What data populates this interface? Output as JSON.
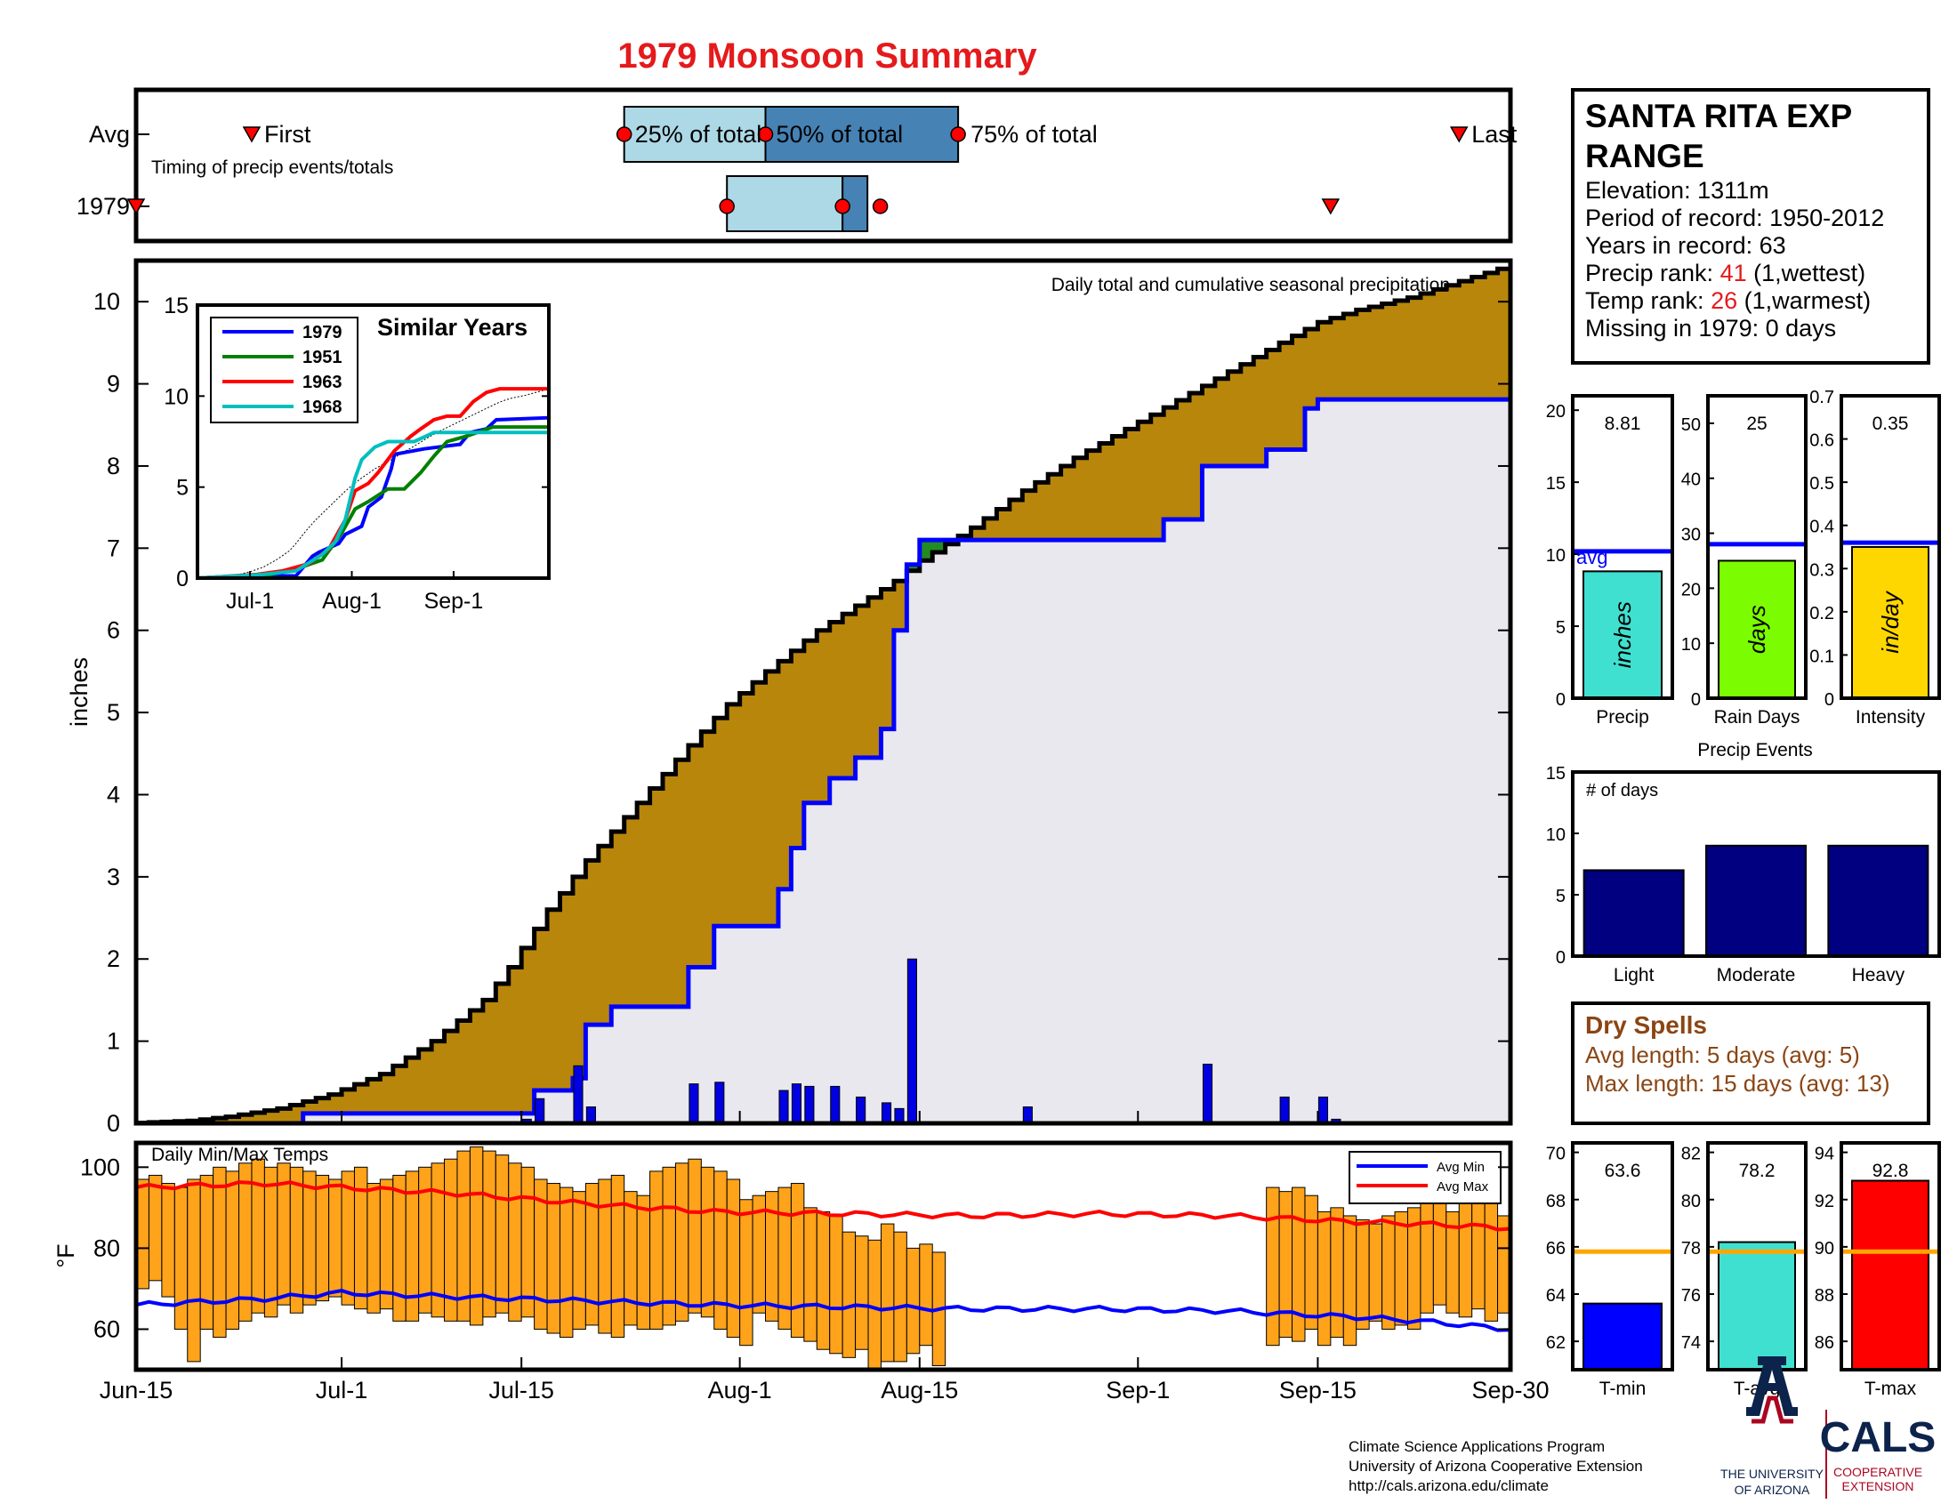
{
  "title": "1979 Monsoon Summary",
  "colors": {
    "title": "#e41a1c",
    "climo_fill": "#b8860b",
    "year_fill": "#e8e8ee",
    "surplus_fill": "#228b22",
    "daily_bar": "#0000e0",
    "climo_line": "#000000",
    "year_line": "#0000ff",
    "temp_bar": "#ffa31a",
    "avg_max": "#ff0000",
    "avg_min": "#0000ff",
    "q_light": "#add8e6",
    "q_dark": "#4682b4",
    "marker": "#ff0000",
    "ref_line": "#ffa500"
  },
  "timing": {
    "avg_label": "Avg",
    "year_label": "1979",
    "caption": "Timing of precip events/totals",
    "first_label": "First",
    "last_label": "Last",
    "q25_label": "25% of total",
    "q50_label": "50% of total",
    "q75_label": "75% of total",
    "avg_dates": {
      "first": "Jun-24",
      "q25": "Jul-23",
      "q50": "Aug-3",
      "q75": "Aug-18",
      "last": "Sep-26"
    },
    "year_dates": {
      "first": "Jun-15",
      "q25": "Jul-31",
      "q50": "Aug-9",
      "q75": "Aug-10",
      "last": "Sep-16"
    }
  },
  "precip_panel": {
    "caption": "Daily total and cumulative seasonal precipitation",
    "ylabel": "inches",
    "ylim": [
      0,
      10.5
    ],
    "yticks": [
      "0",
      "1",
      "2",
      "3",
      "4",
      "5",
      "6",
      "7",
      "8",
      "9",
      "10"
    ]
  },
  "xaxis": {
    "start": "Jun-15",
    "end": "Sep-30",
    "days": 107,
    "ticks": [
      {
        "day": 0,
        "label": "Jun-15"
      },
      {
        "day": 16,
        "label": "Jul-1"
      },
      {
        "day": 30,
        "label": "Jul-15"
      },
      {
        "day": 47,
        "label": "Aug-1"
      },
      {
        "day": 61,
        "label": "Aug-15"
      },
      {
        "day": 78,
        "label": "Sep-1"
      },
      {
        "day": 92,
        "label": "Sep-15"
      },
      {
        "day": 107,
        "label": "Sep-30"
      }
    ]
  },
  "chart_data": [
    {
      "type": "area",
      "name": "cumulative precipitation",
      "x_start": "Jun-15",
      "climo_cumulative": {
        "days": [
          0,
          5,
          8,
          12,
          16,
          20,
          24,
          28,
          30,
          33,
          36,
          40,
          44,
          47,
          50,
          54,
          57,
          60,
          62,
          64,
          66,
          70,
          74,
          78,
          82,
          86,
          90,
          93,
          96,
          100,
          104,
          107
        ],
        "values": [
          0.0,
          0.03,
          0.08,
          0.18,
          0.35,
          0.6,
          1.0,
          1.5,
          1.9,
          2.6,
          3.2,
          3.9,
          4.6,
          5.1,
          5.5,
          6.0,
          6.3,
          6.6,
          6.85,
          7.05,
          7.25,
          7.7,
          8.1,
          8.45,
          8.8,
          9.15,
          9.5,
          9.75,
          9.9,
          10.05,
          10.25,
          10.4
        ]
      },
      "year_cumulative": {
        "days": [
          0,
          13,
          30,
          31,
          34,
          35,
          37,
          43,
          45,
          50,
          51,
          52,
          54,
          56,
          58,
          59,
          60,
          60.5,
          69,
          80,
          83,
          88,
          91,
          92,
          107
        ],
        "values": [
          0.0,
          0.12,
          0.12,
          0.4,
          0.55,
          1.2,
          1.42,
          1.9,
          2.4,
          2.85,
          3.35,
          3.9,
          4.2,
          4.45,
          4.8,
          6.0,
          6.8,
          7.1,
          7.1,
          7.35,
          8.0,
          8.2,
          8.7,
          8.81,
          8.81
        ]
      }
    },
    {
      "type": "bar",
      "name": "daily precipitation",
      "days": [
        30,
        31,
        34,
        35,
        43,
        45,
        50,
        51,
        52,
        54,
        56,
        58,
        59,
        60,
        69,
        83,
        89,
        92,
        93
      ],
      "values": [
        0.05,
        0.3,
        0.7,
        0.2,
        0.48,
        0.5,
        0.4,
        0.48,
        0.45,
        0.45,
        0.32,
        0.25,
        0.18,
        2.0,
        0.2,
        0.72,
        0.32,
        0.32,
        0.05
      ]
    },
    {
      "type": "line",
      "name": "Similar Years",
      "title": "Similar Years",
      "xticks": [
        "Jul-1",
        "Aug-1",
        "Sep-1"
      ],
      "ylim": [
        0,
        15
      ],
      "yticks": [
        "0",
        "5",
        "10",
        "15"
      ],
      "series": [
        {
          "name": "1979",
          "color": "#0000ff",
          "days": [
            0,
            13,
            30,
            35,
            37,
            43,
            45,
            50,
            52,
            56,
            59,
            60,
            69,
            80,
            83,
            88,
            91,
            107
          ],
          "values": [
            0,
            0.12,
            0.12,
            1.2,
            1.42,
            1.9,
            2.4,
            2.85,
            3.9,
            4.45,
            6.0,
            6.8,
            7.1,
            7.35,
            8.0,
            8.2,
            8.7,
            8.81
          ]
        },
        {
          "name": "1951",
          "color": "#008000",
          "days": [
            0,
            20,
            30,
            38,
            44,
            48,
            52,
            58,
            63,
            68,
            72,
            76,
            82,
            90,
            96,
            107
          ],
          "values": [
            0,
            0.1,
            0.5,
            1.0,
            2.5,
            3.8,
            4.2,
            4.9,
            4.9,
            5.8,
            6.7,
            7.5,
            7.8,
            8.3,
            8.3,
            8.3
          ]
        },
        {
          "name": "1963",
          "color": "#ff0000",
          "days": [
            0,
            18,
            26,
            34,
            40,
            45,
            48,
            52,
            55,
            60,
            65,
            68,
            72,
            76,
            80,
            84,
            88,
            92,
            96,
            107
          ],
          "values": [
            0,
            0.2,
            0.4,
            0.8,
            1.6,
            3.2,
            4.8,
            5.2,
            5.8,
            7.0,
            7.8,
            8.2,
            8.7,
            8.9,
            8.9,
            9.7,
            10.2,
            10.4,
            10.4,
            10.4
          ]
        },
        {
          "name": "1968",
          "color": "#00bfbf",
          "days": [
            0,
            20,
            30,
            38,
            42,
            45,
            48,
            50,
            54,
            58,
            62,
            66,
            72,
            80,
            90,
            107
          ],
          "values": [
            0,
            0.2,
            0.4,
            1.3,
            2.0,
            3.2,
            5.5,
            6.5,
            7.2,
            7.5,
            7.5,
            7.5,
            8.0,
            8.0,
            8.0,
            8.0
          ]
        }
      ]
    },
    {
      "type": "bar",
      "name": "Daily Min/Max Temps",
      "title": "Daily Min/Max Temps",
      "ylabel": "°F",
      "ylim": [
        50,
        106
      ],
      "yticks": [
        "60",
        "80",
        "100"
      ],
      "avg_min_name": "Avg Min",
      "avg_max_name": "Avg Max",
      "avg_min": {
        "days": [
          0,
          10,
          16,
          25,
          35,
          45,
          55,
          65,
          75,
          85,
          95,
          100,
          107
        ],
        "values": [
          66,
          67.5,
          69,
          68,
          67,
          66,
          65.5,
          65,
          65,
          64.5,
          63,
          62,
          60
        ]
      },
      "avg_max": {
        "days": [
          0,
          10,
          16,
          25,
          35,
          45,
          55,
          65,
          75,
          85,
          95,
          100,
          107
        ],
        "values": [
          95,
          96,
          95,
          93.5,
          91,
          89,
          88.5,
          88,
          88.5,
          88,
          86.5,
          86,
          85
        ]
      },
      "days": [
        0,
        1,
        2,
        3,
        4,
        5,
        6,
        7,
        8,
        9,
        10,
        11,
        12,
        13,
        14,
        15,
        16,
        17,
        18,
        19,
        20,
        21,
        22,
        23,
        24,
        25,
        26,
        27,
        28,
        29,
        30,
        31,
        32,
        33,
        34,
        35,
        36,
        37,
        38,
        39,
        40,
        41,
        42,
        43,
        44,
        45,
        46,
        47,
        48,
        49,
        50,
        51,
        52,
        53,
        54,
        55,
        56,
        57,
        58,
        59,
        60,
        61,
        62,
        88,
        89,
        90,
        91,
        92,
        93,
        94,
        95,
        96,
        97,
        98,
        99,
        100,
        101,
        102,
        103,
        104,
        105,
        106
      ],
      "tmax": [
        97,
        98,
        96,
        95,
        97,
        98,
        100,
        99,
        101,
        102,
        100,
        101,
        100,
        99,
        98,
        97,
        99,
        100,
        96,
        97,
        98,
        99,
        100,
        101,
        102,
        104,
        105,
        104,
        103,
        101,
        100,
        97,
        96,
        95,
        94,
        96,
        97,
        98,
        94,
        93,
        99,
        100,
        101,
        102,
        100,
        99,
        97,
        92,
        93,
        94,
        95,
        96,
        90,
        89,
        88,
        84,
        83,
        82,
        86,
        84,
        80,
        81,
        79,
        95,
        94,
        95,
        93,
        89,
        90,
        88,
        87,
        86,
        88,
        89,
        90,
        92,
        93,
        89,
        93,
        92,
        94,
        88
      ],
      "tmin": [
        70,
        72,
        68,
        60,
        52,
        60,
        58,
        60,
        62,
        64,
        63,
        66,
        64,
        66,
        67,
        68,
        66,
        65,
        64,
        65,
        62,
        62,
        64,
        63,
        62,
        62,
        61,
        63,
        64,
        62,
        63,
        60,
        59,
        58,
        60,
        61,
        59,
        58,
        61,
        60,
        60,
        61,
        62,
        64,
        63,
        60,
        58,
        56,
        64,
        62,
        60,
        58,
        57,
        55,
        54,
        53,
        55,
        50,
        52,
        52,
        54,
        56,
        51,
        56,
        58,
        57,
        60,
        56,
        58,
        56,
        60,
        62,
        60,
        61,
        60,
        64,
        66,
        64,
        63,
        65,
        62,
        64
      ]
    },
    {
      "type": "bar",
      "name": "Precip",
      "categories": [
        "Precip"
      ],
      "values": [
        8.81
      ],
      "avg": 10.2,
      "avg_label": "avg",
      "bar_label": "inches",
      "value_label": "8.81",
      "ylim": [
        0,
        21
      ],
      "yticks": [
        "0",
        "5",
        "10",
        "15",
        "20"
      ],
      "color": "#40e0d0"
    },
    {
      "type": "bar",
      "name": "Rain Days",
      "categories": [
        "Rain Days"
      ],
      "values": [
        25
      ],
      "avg": 28,
      "bar_label": "days",
      "value_label": "25",
      "ylim": [
        0,
        55
      ],
      "yticks": [
        "0",
        "10",
        "20",
        "30",
        "40",
        "50"
      ],
      "color": "#7cfc00"
    },
    {
      "type": "bar",
      "name": "Intensity",
      "categories": [
        "Intensity"
      ],
      "values": [
        0.35
      ],
      "avg": 0.36,
      "bar_label": "in/day",
      "value_label": "0.35",
      "ylim": [
        0,
        0.7
      ],
      "yticks": [
        "0",
        "0.1",
        "0.2",
        "0.3",
        "0.4",
        "0.5",
        "0.6",
        "0.7"
      ],
      "color": "#ffd700"
    },
    {
      "type": "bar",
      "name": "Precip Events",
      "title": "Precip Events",
      "subtitle": "# of days",
      "categories": [
        "Light",
        "Moderate",
        "Heavy"
      ],
      "values": [
        7,
        9,
        9
      ],
      "ylim": [
        0,
        15
      ],
      "yticks": [
        "0",
        "5",
        "10",
        "15"
      ],
      "color": "#000080"
    },
    {
      "type": "bar",
      "name": "T-min",
      "categories": [
        "T-min"
      ],
      "values": [
        63.6
      ],
      "avg": 65.8,
      "value_label": "63.6",
      "ylim": [
        60.8,
        70.4
      ],
      "yticks": [
        "62",
        "64",
        "66",
        "68",
        "70"
      ],
      "color": "#0000ff"
    },
    {
      "type": "bar",
      "name": "T-avg",
      "categories": [
        "T-avg"
      ],
      "values": [
        78.2
      ],
      "avg": 77.8,
      "value_label": "78.2",
      "ylim": [
        72.8,
        82.4
      ],
      "yticks": [
        "74",
        "76",
        "78",
        "80",
        "82"
      ],
      "color": "#40e0d0"
    },
    {
      "type": "bar",
      "name": "T-max",
      "categories": [
        "T-max"
      ],
      "values": [
        92.8
      ],
      "avg": 89.8,
      "value_label": "92.8",
      "ylim": [
        84.8,
        94.4
      ],
      "yticks": [
        "86",
        "88",
        "90",
        "92",
        "94"
      ],
      "color": "#ff0000"
    }
  ],
  "station": {
    "name_line1": "SANTA RITA EXP",
    "name_line2": "RANGE",
    "elevation_label": "Elevation: 1311m",
    "period_label": "Period of record: 1950-2012",
    "years_label": "Years in record: 63",
    "precip_rank_prefix": "Precip rank: ",
    "precip_rank": "41",
    "precip_rank_suffix": " (1,wettest)",
    "temp_rank_prefix": "Temp rank: ",
    "temp_rank": "26",
    "temp_rank_suffix": " (1,warmest)",
    "missing_label": "Missing in 1979: 0 days"
  },
  "dry_spells": {
    "title": "Dry Spells",
    "avg_length": "Avg length: 5 days (avg: 5)",
    "max_length": "Max length: 15 days (avg: 13)"
  },
  "footer": {
    "line1": "Climate Science Applications Program",
    "line2": "University of Arizona Cooperative Extension",
    "line3": "http://cals.arizona.edu/climate",
    "ua_logo_text1": "THE UNIVERSITY",
    "ua_logo_text2": "OF ARIZONA",
    "cals_logo": "CALS",
    "cals_sub1": "COOPERATIVE",
    "cals_sub2": "EXTENSION"
  }
}
